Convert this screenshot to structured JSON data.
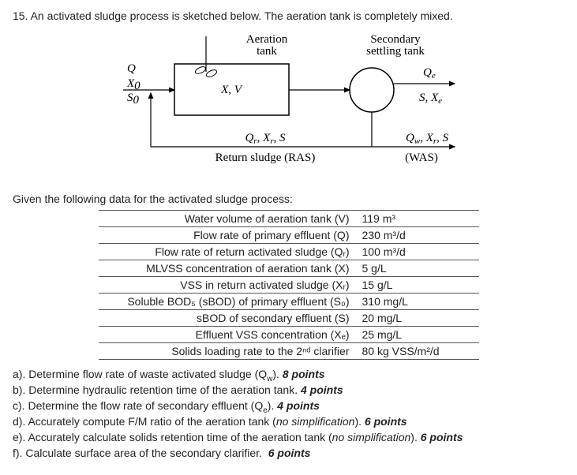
{
  "question": {
    "number": "15.",
    "intro": "An activated sludge process is sketched below. The aeration tank is completely mixed."
  },
  "diagram": {
    "aeration_label": "Aeration\ntank",
    "settling_label": "Secondary\nsettling tank",
    "Q": "Q",
    "X0": "X",
    "X0_sub": "0",
    "S0": "S",
    "S0_sub": "0",
    "XV": "X, V",
    "Qe": "Q",
    "Qe_sub": "e",
    "SXe": "S, X",
    "SXe_sub": "e",
    "Qr": "Q",
    "r_sub": "r",
    "Xr": "X",
    "S": "S",
    "ras": "Return sludge (RAS)",
    "Qw": "Q",
    "w_sub": "w",
    "was": "(WAS)"
  },
  "given_text": "Given the following data for the activated sludge process:",
  "table": {
    "rows": [
      {
        "label": "Water volume of aeration tank (V)",
        "value": "119 m³"
      },
      {
        "label": "Flow rate of primary effluent (Q)",
        "value": "230 m³/d"
      },
      {
        "label": "Flow rate of return activated sludge (Qᵣ)",
        "value": "100 m³/d"
      },
      {
        "label": "MLVSS concentration of aeration tank (X)",
        "value": "5 g/L"
      },
      {
        "label": "VSS in return activated sludge (Xᵣ)",
        "value": "15 g/L"
      },
      {
        "label": "Soluble BOD₅ (sBOD) of primary effluent (S₀)",
        "value": "310 mg/L"
      },
      {
        "label": "sBOD of secondary effluent (S)",
        "value": "20 mg/L"
      },
      {
        "label": "Effluent VSS concentration (Xₑ)",
        "value": "25 mg/L"
      },
      {
        "label": "Solids loading rate to the 2ⁿᵈ clarifier",
        "value": "80 kg VSS/m²/d"
      }
    ]
  },
  "parts": {
    "a": {
      "prefix": "a).",
      "text": "Determine flow rate of waste activated sludge (Q",
      "sub": "w",
      "tail": ").",
      "pts": "8 points"
    },
    "b": {
      "prefix": "b).",
      "text": "Determine hydraulic retention time of the aeration tank.",
      "pts": "4 points"
    },
    "c": {
      "prefix": "c).",
      "text": "Determine the flow rate of secondary effluent (Q",
      "sub": "e",
      "tail": ").",
      "pts": "4 points"
    },
    "d": {
      "prefix": "d).",
      "text": "Accurately compute F/M ratio of the aeration tank (",
      "note": "no simplification",
      "tail": ").",
      "pts": "6 points"
    },
    "e": {
      "prefix": "e).",
      "text": "Accurately calculate solids retention time of the aeration tank (",
      "note": "no simplification",
      "tail": ").",
      "pts": "6 points"
    },
    "f": {
      "prefix": "f).",
      "text": "Calculate surface area of the secondary clarifier.",
      "pts": "6 points"
    }
  }
}
